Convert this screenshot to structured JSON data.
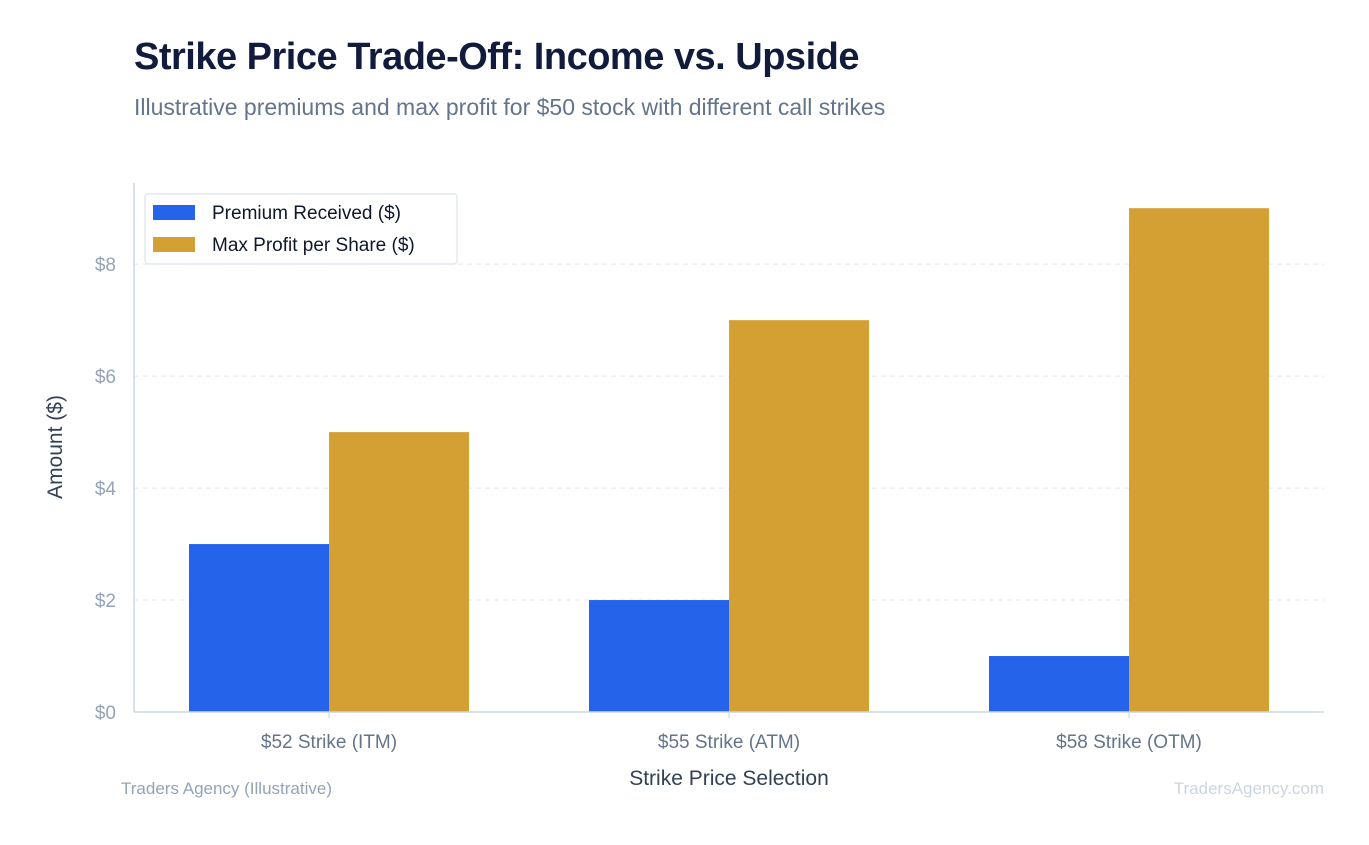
{
  "chart_data": {
    "type": "bar",
    "title": "Strike Price Trade-Off: Income vs. Upside",
    "subtitle": "Illustrative premiums and max profit for $50 stock with different call strikes",
    "xlabel": "Strike Price Selection",
    "ylabel": "Amount ($)",
    "categories": [
      "$52 Strike (ITM)",
      "$55 Strike (ATM)",
      "$58 Strike (OTM)"
    ],
    "series": [
      {
        "name": "Premium Received ($)",
        "values": [
          3,
          2,
          1
        ],
        "color": "#2563eb"
      },
      {
        "name": "Max Profit per Share ($)",
        "values": [
          5,
          7,
          9
        ],
        "color": "#d4a033"
      }
    ],
    "ylim": [
      0,
      9.45
    ],
    "yticks": [
      0,
      2,
      4,
      6,
      8
    ],
    "ytick_labels": [
      "$0",
      "$2",
      "$4",
      "$6",
      "$8"
    ],
    "grid": true,
    "legend_position": "top-left"
  },
  "footer": {
    "source": "Traders Agency (Illustrative)",
    "watermark": "TradersAgency.com"
  }
}
